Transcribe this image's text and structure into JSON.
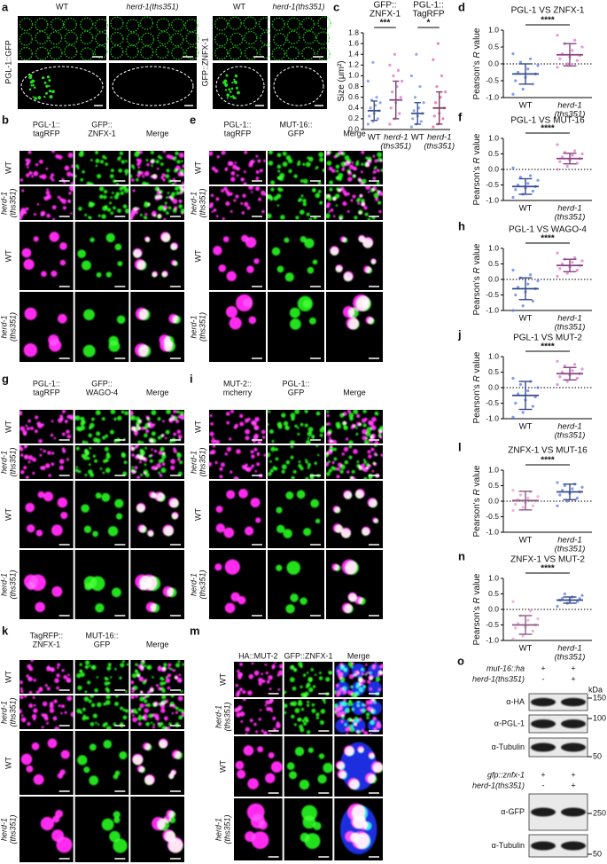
{
  "figure": {
    "panel_a": {
      "letter": "a",
      "headers": [
        "WT",
        "herd-1(ths351)",
        "WT",
        "herd-1(ths351)"
      ],
      "row_labels": [
        "PGL-1::GFP",
        "GFP::ZNFX-1"
      ]
    },
    "image_panels": [
      {
        "letter": "b",
        "columns": [
          [
            "PGL-1::",
            "tagRFP"
          ],
          [
            "GFP::",
            "ZNFX-1"
          ],
          [
            "Merge"
          ]
        ],
        "rows": [
          [
            "WT"
          ],
          [
            "herd-1",
            "(ths351)"
          ],
          [
            "WT"
          ],
          [
            "herd-1",
            "(ths351)"
          ]
        ]
      },
      {
        "letter": "e",
        "columns": [
          [
            "PGL-1::",
            "tagRFP"
          ],
          [
            "MUT-16::",
            "GFP"
          ],
          [
            "Merge"
          ]
        ],
        "rows": [
          [
            "WT"
          ],
          [
            "herd-1",
            "(ths351)"
          ],
          [
            "WT"
          ],
          [
            "herd-1",
            "(ths351)"
          ]
        ]
      },
      {
        "letter": "g",
        "columns": [
          [
            "PGL-1::",
            "tagRFP"
          ],
          [
            "GFP::",
            "WAGO-4"
          ],
          [
            "Merge"
          ]
        ],
        "rows": [
          [
            "WT"
          ],
          [
            "herd-1",
            "(ths351)"
          ],
          [
            "WT"
          ],
          [
            "herd-1",
            "(ths351)"
          ]
        ]
      },
      {
        "letter": "i",
        "columns": [
          [
            "MUT-2::",
            "mcherry"
          ],
          [
            "PGL-1::",
            "GFP"
          ],
          [
            "Merge"
          ]
        ],
        "rows": [
          [
            "WT"
          ],
          [
            "herd-1",
            "(ths351)"
          ],
          [
            "WT"
          ],
          [
            "herd-1",
            "(ths351)"
          ]
        ]
      },
      {
        "letter": "k",
        "columns": [
          [
            "TagRFP::",
            "ZNFX-1"
          ],
          [
            "MUT-16::",
            "GFP"
          ],
          [
            "Merge"
          ]
        ],
        "rows": [
          [
            "WT"
          ],
          [
            "herd-1",
            "(ths351)"
          ],
          [
            "WT"
          ],
          [
            "herd-1",
            "(ths351)"
          ]
        ]
      },
      {
        "letter": "m",
        "columns": [
          [
            "HA::MUT-2"
          ],
          [
            "GFP::ZNFX-1"
          ],
          [
            "Merge"
          ]
        ],
        "rows": [
          [
            "WT"
          ],
          [
            "herd-1",
            "(ths351)"
          ],
          [
            "WT"
          ],
          [
            "herd-1",
            "(ths351)"
          ]
        ]
      }
    ],
    "panel_o": {
      "letter": "o",
      "kda_label": "kDa",
      "blots": [
        {
          "genotypes": [
            {
              "label": "mut-16::ha",
              "signs": [
                "+",
                "+"
              ]
            },
            {
              "label": "herd-1(ths351)",
              "signs": [
                "-",
                "+"
              ]
            }
          ],
          "bands": [
            {
              "label": "α-HA",
              "marker": 150
            },
            {
              "label": "α-PGL-1",
              "marker": 100
            },
            {
              "label": "α-Tubulin",
              "marker": 50
            }
          ]
        },
        {
          "genotypes": [
            {
              "label": "gfp::znfx-1",
              "signs": [
                "+",
                "+"
              ]
            },
            {
              "label": "herd-1(ths351)",
              "signs": [
                "-",
                "+"
              ]
            }
          ],
          "bands": [
            {
              "label": "α-GFP",
              "marker": 250
            },
            {
              "label": "α-Tubulin",
              "marker": 50
            }
          ]
        }
      ]
    }
  },
  "chart_data": [
    {
      "type": "scatter",
      "letter": "c",
      "ylabel": [
        "Size (μm²)"
      ],
      "group_headers": [
        [
          "GFP::",
          "ZNFX-1"
        ],
        [
          "PGL-1::",
          "TagRFP"
        ]
      ],
      "significance": [
        "***",
        "*"
      ],
      "categories": [
        [
          "WT"
        ],
        [
          "herd-1",
          "(ths351)"
        ],
        [
          "WT"
        ],
        [
          "herd-1",
          "(ths351)"
        ]
      ],
      "groups": [
        {
          "color": "#6b8be8",
          "values": [
            0.1,
            0.15,
            0.2,
            0.25,
            0.3,
            0.35,
            0.4,
            0.45,
            0.5,
            0.55,
            0.6,
            0.9,
            1.25
          ],
          "mean": 0.35,
          "sd": 0.18
        },
        {
          "color": "#d96ccc",
          "values": [
            0.1,
            0.2,
            0.3,
            0.4,
            0.5,
            0.6,
            0.7,
            0.8,
            0.9,
            1.0,
            1.1,
            1.2,
            1.4
          ],
          "mean": 0.55,
          "sd": 0.35
        },
        {
          "color": "#6b8be8",
          "values": [
            0.05,
            0.1,
            0.15,
            0.2,
            0.25,
            0.3,
            0.35,
            0.4,
            0.5,
            0.6,
            0.8,
            1.0,
            1.4
          ],
          "mean": 0.3,
          "sd": 0.2
        },
        {
          "color": "#e0609f",
          "values": [
            0.05,
            0.1,
            0.2,
            0.25,
            0.3,
            0.4,
            0.5,
            0.6,
            0.7,
            0.8,
            1.0,
            1.3,
            1.6
          ],
          "mean": 0.4,
          "sd": 0.3
        }
      ],
      "ylim": [
        0,
        1.8
      ],
      "yticks": [
        {
          "value": 0,
          "label": "0.0"
        },
        0.2,
        0.4,
        0.6,
        0.8,
        {
          "value": 1,
          "label": "1.0"
        },
        1.2,
        1.4,
        1.6,
        1.8
      ]
    },
    {
      "type": "scatter",
      "letter": "d",
      "title": "PGL-1 VS ZNFX-1",
      "ylabel": [
        "Pearson's ",
        "R",
        " value"
      ],
      "significance": [
        "****"
      ],
      "categories": [
        [
          "WT"
        ],
        [
          "herd-1",
          "(ths351)"
        ]
      ],
      "groups": [
        {
          "color": "#5a7be6",
          "values": [
            -0.9,
            -0.75,
            -0.6,
            -0.5,
            -0.4,
            -0.3,
            -0.25,
            -0.15,
            -0.05,
            0.05,
            0.15,
            0.3
          ],
          "mean": -0.3,
          "sd": 0.3
        },
        {
          "color": "#e070d0",
          "values": [
            -0.1,
            0,
            0.1,
            0.15,
            0.2,
            0.25,
            0.3,
            0.4,
            0.5,
            0.6,
            0.7,
            0.85
          ],
          "mean": 0.27,
          "sd": 0.33
        }
      ],
      "ylim": [
        -1,
        1
      ],
      "reference_line": 0,
      "yticks": [
        {
          "value": -1,
          "label": "-1.0"
        },
        -0.5,
        {
          "value": 0,
          "label": "0.0"
        },
        0.5,
        {
          "value": 1,
          "label": "1.0"
        }
      ]
    },
    {
      "type": "scatter",
      "letter": "f",
      "title": "PGL-1 VS MUT-16",
      "ylabel": [
        "Pearson's ",
        "R",
        " value"
      ],
      "significance": [
        "****"
      ],
      "categories": [
        [
          "WT"
        ],
        [
          "herd-1",
          "(ths351)"
        ]
      ],
      "groups": [
        {
          "color": "#5a7be6",
          "values": [
            -0.9,
            -0.8,
            -0.7,
            -0.65,
            -0.6,
            -0.55,
            -0.5,
            -0.45,
            -0.35,
            -0.25,
            -0.2,
            0.05
          ],
          "mean": -0.55,
          "sd": 0.25
        },
        {
          "color": "#e070d0",
          "values": [
            0,
            0.1,
            0.2,
            0.25,
            0.3,
            0.35,
            0.4,
            0.45,
            0.5,
            0.55,
            0.6,
            0.8
          ],
          "mean": 0.35,
          "sd": 0.17
        }
      ],
      "ylim": [
        -1,
        1
      ],
      "reference_line": 0,
      "yticks": [
        {
          "value": -1,
          "label": "-1.0"
        },
        -0.5,
        {
          "value": 0,
          "label": "0.0"
        },
        0.5,
        {
          "value": 1,
          "label": "1.0"
        }
      ]
    },
    {
      "type": "scatter",
      "letter": "h",
      "title": "PGL-1 VS WAGO-4",
      "ylabel": [
        "Pearson's ",
        "R",
        " value"
      ],
      "significance": [
        "****"
      ],
      "categories": [
        [
          "WT"
        ],
        [
          "herd-1",
          "(ths351)"
        ]
      ],
      "groups": [
        {
          "color": "#5a7be6",
          "values": [
            -1,
            -0.85,
            -0.7,
            -0.5,
            -0.4,
            -0.3,
            -0.25,
            -0.15,
            -0.05,
            0.05,
            0.15,
            0.3
          ],
          "mean": -0.3,
          "sd": 0.35
        },
        {
          "color": "#e070d0",
          "values": [
            0.1,
            0.2,
            0.3,
            0.35,
            0.4,
            0.45,
            0.5,
            0.55,
            0.6,
            0.65,
            0.7,
            0.85
          ],
          "mean": 0.45,
          "sd": 0.2
        }
      ],
      "ylim": [
        -1,
        1
      ],
      "reference_line": 0,
      "yticks": [
        {
          "value": -1,
          "label": "-1.0"
        },
        -0.5,
        {
          "value": 0,
          "label": "0.0"
        },
        0.5,
        {
          "value": 1,
          "label": "1.0"
        }
      ]
    },
    {
      "type": "scatter",
      "letter": "j",
      "title": "PGL-1 VS MUT-2",
      "ylabel": [
        "Pearson's ",
        "R",
        " value"
      ],
      "significance": [
        "****"
      ],
      "categories": [
        [
          "WT"
        ],
        [
          "herd-1",
          "(ths351)"
        ]
      ],
      "groups": [
        {
          "color": "#5a7be6",
          "values": [
            -0.95,
            -0.8,
            -0.6,
            -0.5,
            -0.4,
            -0.3,
            -0.2,
            -0.1,
            0,
            0.1,
            0.2,
            0.3
          ],
          "mean": -0.25,
          "sd": 0.45
        },
        {
          "color": "#e070d0",
          "values": [
            0.1,
            0.2,
            0.3,
            0.35,
            0.4,
            0.45,
            0.5,
            0.55,
            0.6,
            0.7,
            0.75,
            0.85
          ],
          "mean": 0.45,
          "sd": 0.2
        }
      ],
      "ylim": [
        -1,
        1
      ],
      "reference_line": 0,
      "yticks": [
        {
          "value": -1,
          "label": "-1.0"
        },
        -0.5,
        {
          "value": 0,
          "label": "0.0"
        },
        0.5,
        {
          "value": 1,
          "label": "1.0"
        }
      ]
    },
    {
      "type": "scatter",
      "letter": "l",
      "title": "ZNFX-1 VS MUT-16",
      "ylabel": [
        "Pearson's ",
        "R",
        " value"
      ],
      "significance": [
        "****"
      ],
      "categories": [
        [
          "WT"
        ],
        [
          "herd-1",
          "(ths351)"
        ]
      ],
      "groups": [
        {
          "color": "#eb9ad8",
          "values": [
            -0.3,
            -0.2,
            -0.15,
            -0.1,
            -0.05,
            0,
            0.05,
            0.1,
            0.15,
            0.2,
            0.3,
            0.35
          ],
          "mean": 0.02,
          "sd": 0.3
        },
        {
          "color": "#5a7be6",
          "values": [
            -0.15,
            0,
            0.1,
            0.2,
            0.25,
            0.3,
            0.35,
            0.4,
            0.45,
            0.5,
            0.55,
            0.6
          ],
          "mean": 0.3,
          "sd": 0.25
        }
      ],
      "ylim": [
        -1,
        1
      ],
      "reference_line": 0,
      "yticks": [
        {
          "value": -1,
          "label": "-1.0"
        },
        -0.5,
        {
          "value": 0,
          "label": "0.0"
        },
        0.5,
        {
          "value": 1,
          "label": "1.0"
        }
      ]
    },
    {
      "type": "scatter",
      "letter": "n",
      "title": "ZNFX-1 VS MUT-2",
      "ylabel": [
        "Pearson's ",
        "R",
        " value"
      ],
      "significance": [
        "****"
      ],
      "categories": [
        [
          "WT"
        ],
        [
          "herd-1",
          "(ths351)"
        ]
      ],
      "groups": [
        {
          "color": "#eb9ad8",
          "values": [
            -0.95,
            -0.85,
            -0.7,
            -0.6,
            -0.55,
            -0.5,
            -0.45,
            -0.35,
            -0.3,
            -0.2,
            -0.05,
            0.25
          ],
          "mean": -0.5,
          "sd": 0.3
        },
        {
          "color": "#5a7be6",
          "values": [
            0.1,
            0.2,
            0.25,
            0.3,
            0.3,
            0.35,
            0.35,
            0.4,
            0.45,
            0.5
          ],
          "mean": 0.3,
          "sd": 0.1
        }
      ],
      "ylim": [
        -1,
        1
      ],
      "reference_line": 0,
      "yticks": [
        {
          "value": -1,
          "label": "-1.0"
        },
        -0.5,
        {
          "value": 0,
          "label": "0.0"
        },
        0.5,
        {
          "value": 1,
          "label": "1.0"
        }
      ]
    }
  ]
}
